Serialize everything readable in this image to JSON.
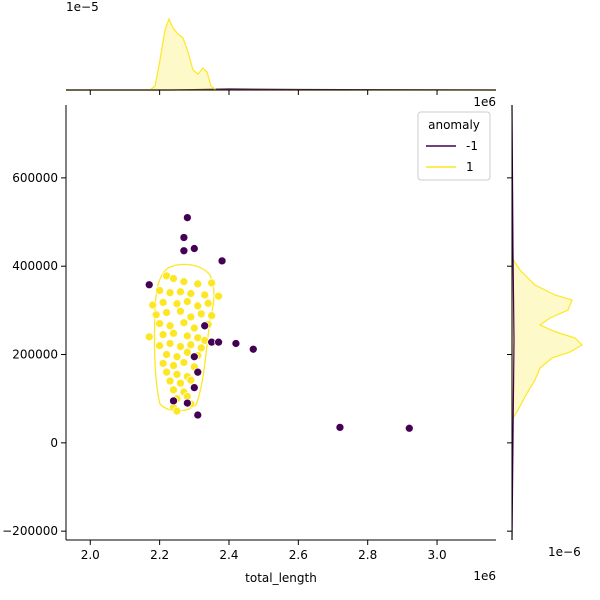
{
  "chart_data": {
    "type": "scatter",
    "xlabel": "total_length",
    "ylabel": "",
    "x_exponent": "1e6",
    "y_exponent": "",
    "xlim": [
      1.93,
      3.17
    ],
    "ylim": [
      -220000,
      765000
    ],
    "x_ticks": [
      2.0,
      2.2,
      2.4,
      2.6,
      2.8,
      3.0
    ],
    "y_ticks": [
      -200000,
      0,
      200000,
      400000,
      600000
    ],
    "x_tick_labels": [
      "2.0",
      "2.2",
      "2.4",
      "2.6",
      "2.8",
      "3.0"
    ],
    "y_tick_labels": [
      "−200000",
      "0",
      "200000",
      "400000",
      "600000"
    ],
    "top_marginal": {
      "exponent": "1e−5"
    },
    "top_right_label": "1e6",
    "right_marginal": {
      "exponent": "1e−6"
    },
    "legend": {
      "title": "anomaly",
      "placement": "upper right"
    },
    "grid": false,
    "series": [
      {
        "name": "-1",
        "color": "#440154",
        "points": [
          [
            2.28,
            510000
          ],
          [
            2.27,
            465000
          ],
          [
            2.3,
            440000
          ],
          [
            2.27,
            435000
          ],
          [
            2.38,
            412000
          ],
          [
            2.17,
            358000
          ],
          [
            2.33,
            265000
          ],
          [
            2.35,
            228000
          ],
          [
            2.37,
            228000
          ],
          [
            2.42,
            225000
          ],
          [
            2.47,
            212000
          ],
          [
            2.3,
            195000
          ],
          [
            2.31,
            160000
          ],
          [
            2.3,
            125000
          ],
          [
            2.24,
            95000
          ],
          [
            2.28,
            90000
          ],
          [
            2.31,
            63000
          ],
          [
            2.72,
            35000
          ],
          [
            2.92,
            33000
          ]
        ]
      },
      {
        "name": "1",
        "color": "#fde725",
        "points": [
          [
            2.22,
            378000
          ],
          [
            2.24,
            372000
          ],
          [
            2.27,
            365000
          ],
          [
            2.31,
            360000
          ],
          [
            2.35,
            362000
          ],
          [
            2.2,
            345000
          ],
          [
            2.23,
            340000
          ],
          [
            2.26,
            342000
          ],
          [
            2.29,
            338000
          ],
          [
            2.33,
            335000
          ],
          [
            2.37,
            332000
          ],
          [
            2.18,
            312000
          ],
          [
            2.21,
            318000
          ],
          [
            2.25,
            315000
          ],
          [
            2.28,
            320000
          ],
          [
            2.31,
            310000
          ],
          [
            2.34,
            316000
          ],
          [
            2.19,
            290000
          ],
          [
            2.22,
            295000
          ],
          [
            2.26,
            298000
          ],
          [
            2.29,
            285000
          ],
          [
            2.32,
            292000
          ],
          [
            2.35,
            288000
          ],
          [
            2.2,
            270000
          ],
          [
            2.23,
            265000
          ],
          [
            2.27,
            272000
          ],
          [
            2.3,
            260000
          ],
          [
            2.34,
            268000
          ],
          [
            2.17,
            240000
          ],
          [
            2.21,
            245000
          ],
          [
            2.24,
            248000
          ],
          [
            2.28,
            242000
          ],
          [
            2.31,
            238000
          ],
          [
            2.33,
            232000
          ],
          [
            2.2,
            220000
          ],
          [
            2.23,
            225000
          ],
          [
            2.26,
            218000
          ],
          [
            2.29,
            222000
          ],
          [
            2.32,
            215000
          ],
          [
            2.22,
            200000
          ],
          [
            2.25,
            195000
          ],
          [
            2.28,
            205000
          ],
          [
            2.31,
            198000
          ],
          [
            2.21,
            180000
          ],
          [
            2.24,
            175000
          ],
          [
            2.27,
            182000
          ],
          [
            2.3,
            172000
          ],
          [
            2.22,
            160000
          ],
          [
            2.25,
            155000
          ],
          [
            2.28,
            150000
          ],
          [
            2.23,
            140000
          ],
          [
            2.26,
            135000
          ],
          [
            2.29,
            142000
          ],
          [
            2.24,
            120000
          ],
          [
            2.27,
            115000
          ],
          [
            2.25,
            100000
          ],
          [
            2.28,
            105000
          ],
          [
            2.24,
            80000
          ],
          [
            2.25,
            72000
          ],
          [
            2.29,
            88000
          ]
        ]
      }
    ]
  }
}
